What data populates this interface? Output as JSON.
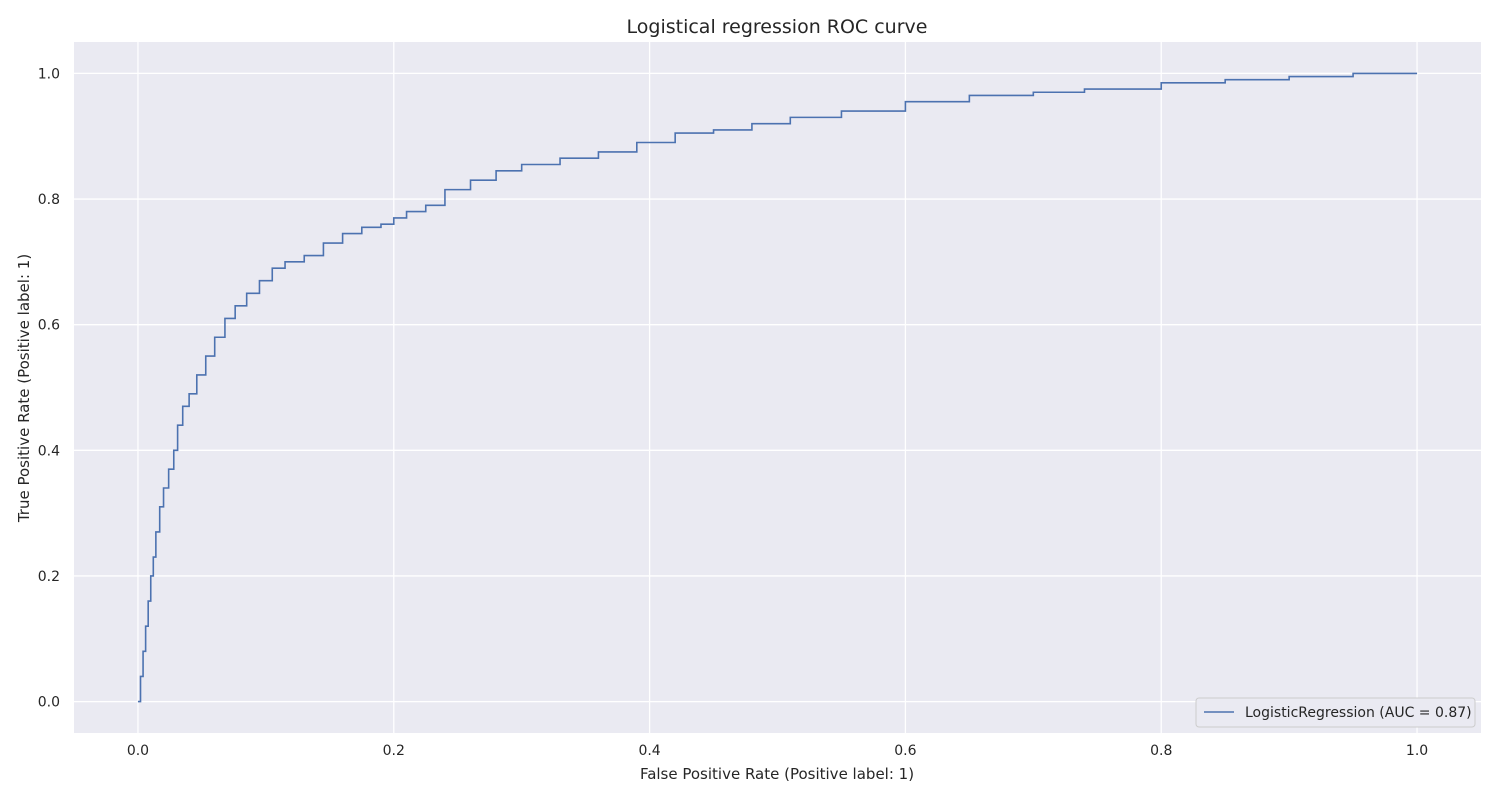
{
  "chart_data": {
    "type": "line",
    "title": "Logistical regression ROC curve",
    "xlabel": "False Positive Rate (Positive label: 1)",
    "ylabel": "True Positive Rate (Positive label: 1)",
    "xlim": [
      -0.05,
      1.05
    ],
    "ylim": [
      -0.05,
      1.05
    ],
    "xticks": [
      0.0,
      0.2,
      0.4,
      0.6,
      0.8,
      1.0
    ],
    "yticks": [
      0.0,
      0.2,
      0.4,
      0.6,
      0.8,
      1.0
    ],
    "xtick_labels": [
      "0.0",
      "0.2",
      "0.4",
      "0.6",
      "0.8",
      "1.0"
    ],
    "ytick_labels": [
      "0.0",
      "0.2",
      "0.4",
      "0.6",
      "0.8",
      "1.0"
    ],
    "grid": true,
    "legend_position": "bottom-right",
    "series": [
      {
        "name": "LogisticRegression (AUC = 0.87)",
        "color": "#4c72b0",
        "x": [
          0.0,
          0.002,
          0.004,
          0.006,
          0.008,
          0.01,
          0.012,
          0.014,
          0.017,
          0.02,
          0.024,
          0.028,
          0.031,
          0.035,
          0.04,
          0.046,
          0.053,
          0.06,
          0.068,
          0.076,
          0.085,
          0.095,
          0.105,
          0.115,
          0.13,
          0.145,
          0.16,
          0.175,
          0.19,
          0.2,
          0.21,
          0.225,
          0.24,
          0.26,
          0.28,
          0.3,
          0.33,
          0.36,
          0.39,
          0.42,
          0.45,
          0.48,
          0.51,
          0.55,
          0.6,
          0.65,
          0.7,
          0.74,
          0.8,
          0.85,
          0.9,
          0.95,
          1.0
        ],
        "y": [
          0.0,
          0.04,
          0.08,
          0.12,
          0.16,
          0.2,
          0.23,
          0.27,
          0.31,
          0.34,
          0.37,
          0.4,
          0.44,
          0.47,
          0.49,
          0.52,
          0.55,
          0.58,
          0.61,
          0.63,
          0.65,
          0.67,
          0.69,
          0.7,
          0.71,
          0.73,
          0.745,
          0.755,
          0.76,
          0.77,
          0.78,
          0.79,
          0.815,
          0.83,
          0.845,
          0.855,
          0.865,
          0.875,
          0.89,
          0.905,
          0.91,
          0.92,
          0.93,
          0.94,
          0.955,
          0.965,
          0.97,
          0.975,
          0.985,
          0.99,
          0.995,
          1.0,
          1.0
        ]
      }
    ],
    "colors": {
      "plot_background": "#eaeaf2",
      "grid": "#ffffff",
      "line": "#4c72b0"
    }
  }
}
